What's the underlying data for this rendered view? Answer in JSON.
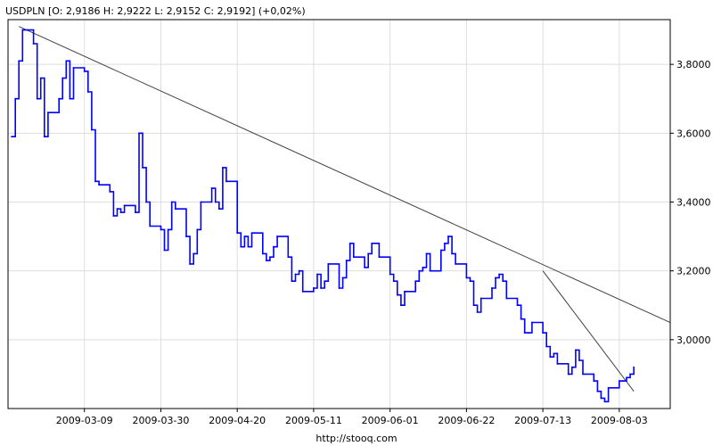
{
  "header": {
    "text": "USDPLN [O: 2,9186  H: 2,9222  L: 2,9152  C: 2,9192] (+0,02%)"
  },
  "footer": {
    "url": "http://stooq.com"
  },
  "colors": {
    "series": "#0000ff",
    "trendlines": "#404040",
    "grid": "#dddddd",
    "axis": "#000000",
    "background": "#ffffff"
  },
  "chart_data": {
    "type": "line",
    "title": "USDPLN [O: 2,9186  H: 2,9222  L: 2,9152  C: 2,9192] (+0,02%)",
    "ylim": [
      2.8,
      3.93
    ],
    "yticks": [
      3.0,
      3.2,
      3.4,
      3.6,
      3.8
    ],
    "ytick_labels": [
      "3,0000",
      "3,2000",
      "3,4000",
      "3,6000",
      "3,8000"
    ],
    "xlim": [
      "2009-02-16",
      "2009-08-17"
    ],
    "xticks": [
      "2009-03-09",
      "2009-03-30",
      "2009-04-20",
      "2009-05-11",
      "2009-06-01",
      "2009-06-22",
      "2009-07-13",
      "2009-08-03"
    ],
    "grid": true,
    "series": [
      {
        "x": [
          "2009-02-17",
          "2009-02-18",
          "2009-02-19",
          "2009-02-20",
          "2009-02-23",
          "2009-02-24",
          "2009-02-25",
          "2009-02-26",
          "2009-02-27",
          "2009-03-02",
          "2009-03-03",
          "2009-03-04",
          "2009-03-05",
          "2009-03-06",
          "2009-03-09",
          "2009-03-10",
          "2009-03-11",
          "2009-03-12",
          "2009-03-13",
          "2009-03-16",
          "2009-03-17",
          "2009-03-18",
          "2009-03-19",
          "2009-03-20",
          "2009-03-23",
          "2009-03-24",
          "2009-03-25",
          "2009-03-26",
          "2009-03-27",
          "2009-03-30",
          "2009-03-31",
          "2009-04-01",
          "2009-04-02",
          "2009-04-03",
          "2009-04-06",
          "2009-04-07",
          "2009-04-08",
          "2009-04-09",
          "2009-04-10",
          "2009-04-13",
          "2009-04-14",
          "2009-04-15",
          "2009-04-16",
          "2009-04-17",
          "2009-04-20",
          "2009-04-21",
          "2009-04-22",
          "2009-04-23",
          "2009-04-24",
          "2009-04-27",
          "2009-04-28",
          "2009-04-29",
          "2009-04-30",
          "2009-05-01",
          "2009-05-04",
          "2009-05-05",
          "2009-05-06",
          "2009-05-07",
          "2009-05-08",
          "2009-05-11",
          "2009-05-12",
          "2009-05-13",
          "2009-05-14",
          "2009-05-15",
          "2009-05-18",
          "2009-05-19",
          "2009-05-20",
          "2009-05-21",
          "2009-05-22",
          "2009-05-25",
          "2009-05-26",
          "2009-05-27",
          "2009-05-28",
          "2009-05-29",
          "2009-06-01",
          "2009-06-02",
          "2009-06-03",
          "2009-06-04",
          "2009-06-05",
          "2009-06-08",
          "2009-06-09",
          "2009-06-10",
          "2009-06-11",
          "2009-06-12",
          "2009-06-15",
          "2009-06-16",
          "2009-06-17",
          "2009-06-18",
          "2009-06-19",
          "2009-06-22",
          "2009-06-23",
          "2009-06-24",
          "2009-06-25",
          "2009-06-26",
          "2009-06-29",
          "2009-06-30",
          "2009-07-01",
          "2009-07-02",
          "2009-07-03",
          "2009-07-06",
          "2009-07-07",
          "2009-07-08",
          "2009-07-09",
          "2009-07-10",
          "2009-07-13",
          "2009-07-14",
          "2009-07-15",
          "2009-07-16",
          "2009-07-17",
          "2009-07-20",
          "2009-07-21",
          "2009-07-22",
          "2009-07-23",
          "2009-07-24",
          "2009-07-27",
          "2009-07-28",
          "2009-07-29",
          "2009-07-30",
          "2009-07-31",
          "2009-08-03",
          "2009-08-04",
          "2009-08-05",
          "2009-08-06",
          "2009-08-07"
        ],
        "values": [
          3.59,
          3.7,
          3.81,
          3.9,
          3.86,
          3.7,
          3.76,
          3.59,
          3.66,
          3.7,
          3.76,
          3.81,
          3.7,
          3.79,
          3.78,
          3.72,
          3.61,
          3.46,
          3.45,
          3.43,
          3.36,
          3.38,
          3.37,
          3.39,
          3.37,
          3.6,
          3.5,
          3.4,
          3.33,
          3.32,
          3.26,
          3.32,
          3.4,
          3.38,
          3.3,
          3.22,
          3.25,
          3.32,
          3.4,
          3.44,
          3.4,
          3.38,
          3.5,
          3.46,
          3.31,
          3.27,
          3.3,
          3.27,
          3.31,
          3.25,
          3.23,
          3.24,
          3.27,
          3.3,
          3.24,
          3.17,
          3.19,
          3.2,
          3.14,
          3.15,
          3.19,
          3.15,
          3.17,
          3.22,
          3.15,
          3.18,
          3.23,
          3.28,
          3.24,
          3.21,
          3.25,
          3.28,
          3.28,
          3.24,
          3.19,
          3.17,
          3.13,
          3.1,
          3.14,
          3.17,
          3.2,
          3.21,
          3.25,
          3.2,
          3.26,
          3.28,
          3.3,
          3.25,
          3.22,
          3.18,
          3.17,
          3.1,
          3.08,
          3.12,
          3.15,
          3.18,
          3.19,
          3.17,
          3.12,
          3.1,
          3.06,
          3.02,
          3.02,
          3.05,
          3.02,
          2.98,
          2.95,
          2.96,
          2.93,
          2.9,
          2.92,
          2.97,
          2.94,
          2.9,
          2.88,
          2.85,
          2.83,
          2.82,
          2.86,
          2.88,
          2.88,
          2.89,
          2.9,
          2.92
        ]
      }
    ],
    "trendlines": [
      {
        "x": [
          "2009-02-19",
          "2009-08-17"
        ],
        "values": [
          3.91,
          3.05
        ]
      },
      {
        "x": [
          "2009-07-13",
          "2009-08-07"
        ],
        "values": [
          3.2,
          2.85
        ]
      }
    ]
  }
}
